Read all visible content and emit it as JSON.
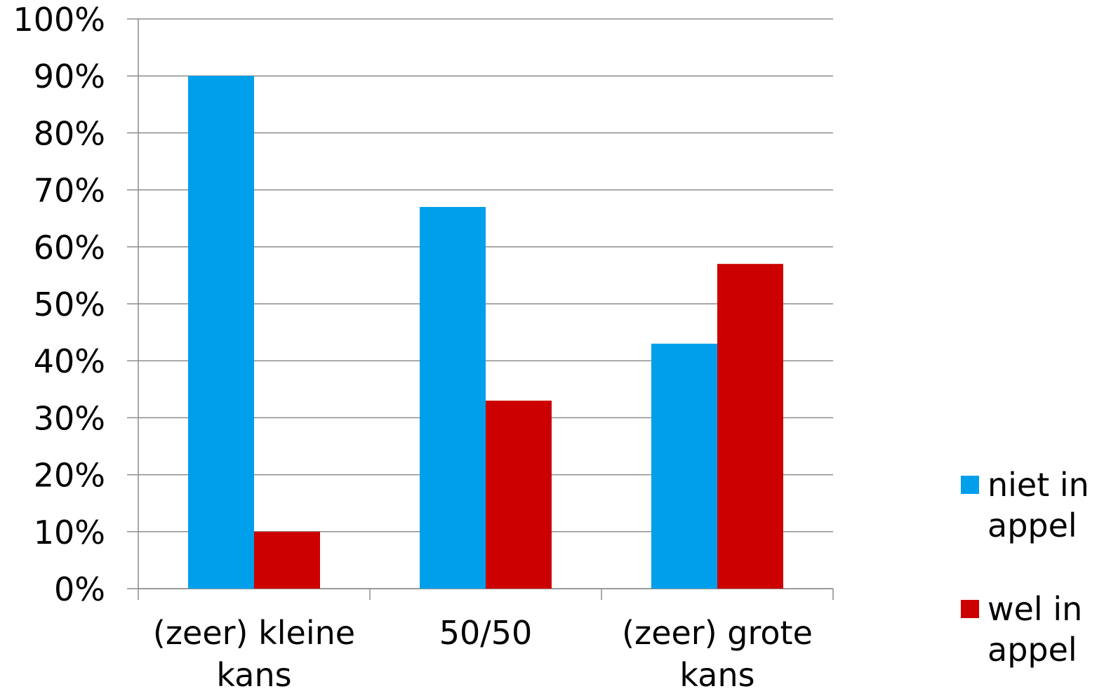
{
  "chart_data": {
    "type": "bar",
    "categories": [
      [
        "(zeer) kleine",
        "kans"
      ],
      [
        "50/50"
      ],
      [
        "(zeer) grote",
        "kans"
      ]
    ],
    "series": [
      {
        "name": [
          "niet in",
          "appel"
        ],
        "color": "#009FEB",
        "values": [
          90,
          67,
          43
        ]
      },
      {
        "name": [
          "wel in",
          "appel"
        ],
        "color": "#CC0000",
        "values": [
          10,
          33,
          57
        ]
      }
    ],
    "ylim": [
      0,
      100
    ],
    "yticks": [
      "0%",
      "10%",
      "20%",
      "30%",
      "40%",
      "50%",
      "60%",
      "70%",
      "80%",
      "90%",
      "100%"
    ],
    "grid": true,
    "legend": "right"
  }
}
